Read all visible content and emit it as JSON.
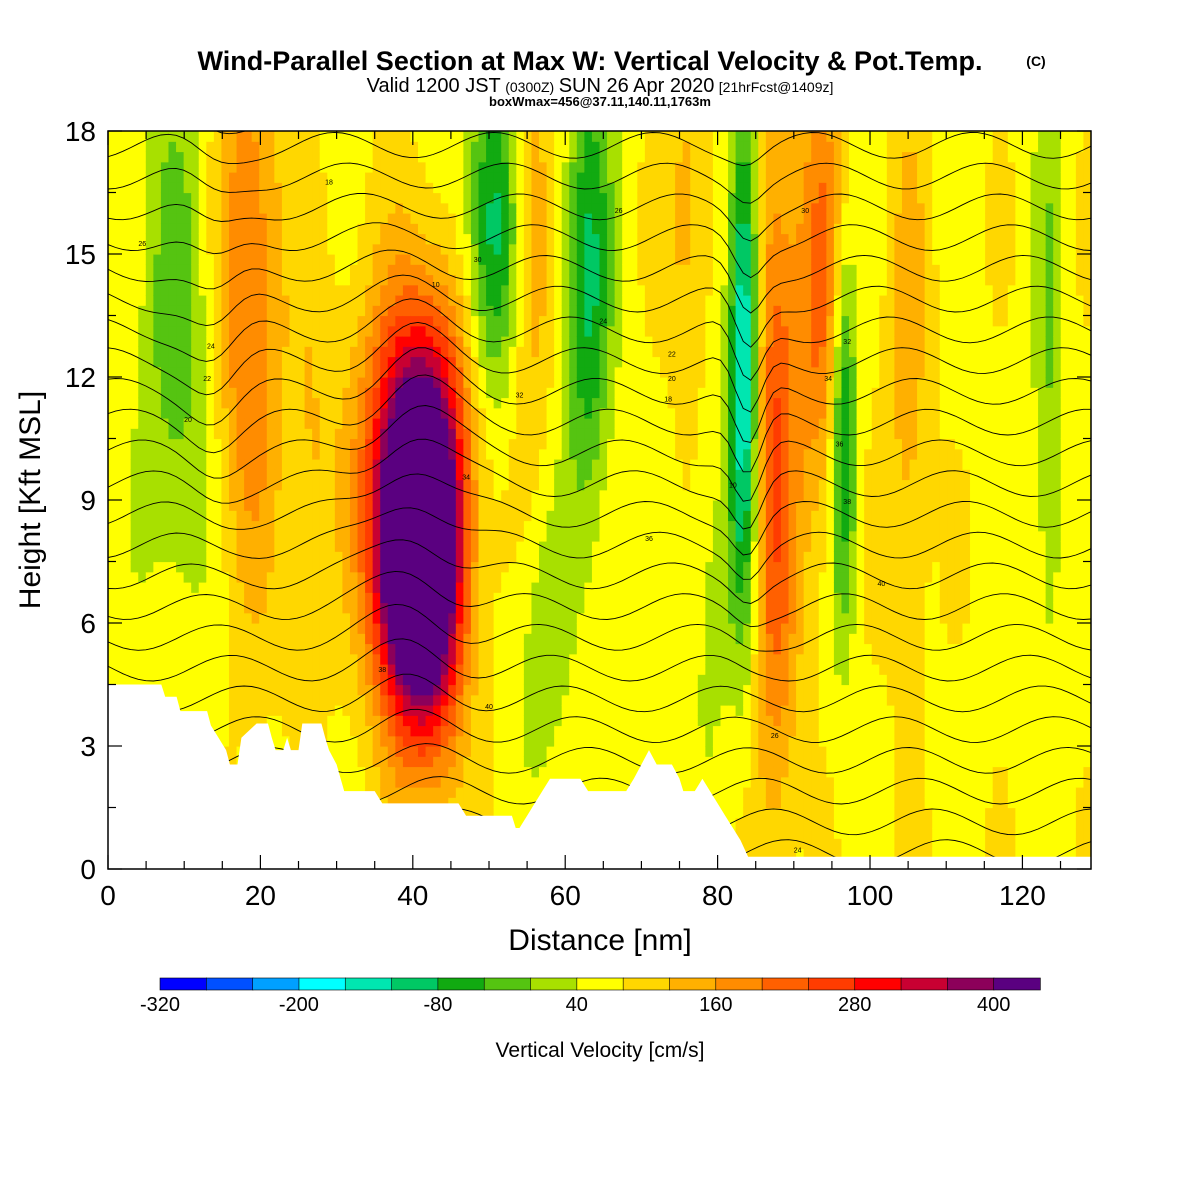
{
  "title": {
    "main": "Wind-Parallel Section at Max W: Vertical Velocity & Pot.Temp.",
    "copyright": "(C)",
    "valid_prefix": "Valid 1200 JST",
    "valid_utc": "(0300Z)",
    "valid_date": "SUN 26 Apr 2020",
    "forecast": "[21hrFcst@1409z]",
    "boxwmax": "boxWmax=456@37.11,140.11,1763m"
  },
  "chart_data": {
    "type": "heatmap",
    "xlabel": "Distance [nm]",
    "ylabel": "Height [Kft MSL]",
    "xlim": [
      0,
      129
    ],
    "ylim": [
      0,
      18
    ],
    "x_ticks": [
      0,
      20,
      40,
      60,
      80,
      100,
      120
    ],
    "x_minor_step": 5,
    "y_ticks": [
      0,
      3,
      6,
      9,
      12,
      15,
      18
    ],
    "y_minor_step": 1.5,
    "colorbar": {
      "label": "Vertical Velocity [cm/s]",
      "ticks": [
        -320,
        -200,
        -80,
        40,
        160,
        280,
        400
      ],
      "levels": [
        -360,
        -320,
        -280,
        -240,
        -200,
        -160,
        -120,
        -80,
        -40,
        0,
        40,
        80,
        120,
        160,
        200,
        240,
        280,
        320,
        360,
        400,
        440
      ],
      "colors": [
        "#0000ff",
        "#0050ff",
        "#00a0ff",
        "#00ffff",
        "#00e6b0",
        "#00c864",
        "#11aa11",
        "#55c411",
        "#a8e000",
        "#ffff00",
        "#ffd700",
        "#ffb000",
        "#ff8c00",
        "#ff6000",
        "#ff3c00",
        "#ff0000",
        "#c80032",
        "#8c005a",
        "#5a0080",
        "#5a0080"
      ]
    },
    "updrafts": [
      {
        "x": 39.0,
        "z": 7.8,
        "w": 460,
        "sx": 3.2,
        "sz": 2.8
      },
      {
        "x": 43.0,
        "z": 7.5,
        "w": 320,
        "sx": 3.0,
        "sz": 3.2
      },
      {
        "x": 40.5,
        "z": 11.0,
        "w": 130,
        "sx": 6.0,
        "sz": 3.0
      },
      {
        "x": 18.5,
        "z": 14.0,
        "w": 140,
        "sx": 3.0,
        "sz": 5.0
      },
      {
        "x": 87.5,
        "z": 10.0,
        "w": 170,
        "sx": 2.2,
        "sz": 6.0
      },
      {
        "x": 94.0,
        "z": 14.0,
        "w": 150,
        "sx": 2.5,
        "sz": 4.0
      },
      {
        "x": 55.5,
        "z": 15.5,
        "w": 90,
        "sx": 2.0,
        "sz": 3.5
      },
      {
        "x": 76.0,
        "z": 16.0,
        "w": 70,
        "sx": 2.0,
        "sz": 3.0
      },
      {
        "x": 26.5,
        "z": 9.0,
        "w": 50,
        "sx": 2.0,
        "sz": 4.0
      },
      {
        "x": 105.0,
        "z": 12.0,
        "w": 70,
        "sx": 2.0,
        "sz": 5.0
      }
    ],
    "downdrafts": [
      {
        "x": 9.0,
        "z": 13.0,
        "w": -90,
        "sx": 3.5,
        "sz": 5.0
      },
      {
        "x": 50.5,
        "z": 15.5,
        "w": -180,
        "sx": 2.5,
        "sz": 3.0
      },
      {
        "x": 63.0,
        "z": 14.5,
        "w": -160,
        "sx": 2.2,
        "sz": 4.0
      },
      {
        "x": 83.5,
        "z": 12.5,
        "w": -260,
        "sx": 1.4,
        "sz": 4.5
      },
      {
        "x": 96.5,
        "z": 11.0,
        "w": -200,
        "sx": 1.3,
        "sz": 3.5
      },
      {
        "x": 57.0,
        "z": 5.5,
        "w": -60,
        "sx": 2.5,
        "sz": 2.5
      },
      {
        "x": 123.5,
        "z": 12.0,
        "w": -70,
        "sx": 1.5,
        "sz": 6.0
      },
      {
        "x": 79.0,
        "z": 6.0,
        "w": -45,
        "sx": 2.0,
        "sz": 3.0
      }
    ],
    "terrain": [
      [
        0,
        4.5
      ],
      [
        7,
        4.5
      ],
      [
        7.5,
        4.2
      ],
      [
        9,
        4.2
      ],
      [
        9.5,
        3.85
      ],
      [
        13,
        3.85
      ],
      [
        13.5,
        3.5
      ],
      [
        14.5,
        3.2
      ],
      [
        15.5,
        2.9
      ],
      [
        16,
        2.55
      ],
      [
        17,
        2.55
      ],
      [
        17.5,
        3.2
      ],
      [
        19.5,
        3.55
      ],
      [
        21,
        3.55
      ],
      [
        21.5,
        3.2
      ],
      [
        22,
        2.9
      ],
      [
        23,
        2.9
      ],
      [
        23.5,
        3.2
      ],
      [
        24,
        2.9
      ],
      [
        25,
        2.9
      ],
      [
        25.5,
        3.55
      ],
      [
        28,
        3.55
      ],
      [
        28.5,
        3.2
      ],
      [
        29,
        2.9
      ],
      [
        30,
        2.55
      ],
      [
        31,
        1.9
      ],
      [
        35,
        1.9
      ],
      [
        36,
        1.6
      ],
      [
        40,
        1.6
      ],
      [
        46,
        1.6
      ],
      [
        47,
        1.3
      ],
      [
        49,
        1.3
      ],
      [
        53,
        1.3
      ],
      [
        53.5,
        1.0
      ],
      [
        54,
        1.0
      ],
      [
        55,
        1.3
      ],
      [
        56,
        1.6
      ],
      [
        57,
        1.9
      ],
      [
        58,
        2.2
      ],
      [
        62,
        2.2
      ],
      [
        63,
        1.9
      ],
      [
        68,
        1.9
      ],
      [
        69,
        2.2
      ],
      [
        70,
        2.55
      ],
      [
        71,
        2.9
      ],
      [
        72,
        2.55
      ],
      [
        74,
        2.55
      ],
      [
        75,
        2.2
      ],
      [
        75.5,
        1.9
      ],
      [
        77,
        1.9
      ],
      [
        78,
        2.2
      ],
      [
        79,
        1.9
      ],
      [
        80,
        1.6
      ],
      [
        81,
        1.3
      ],
      [
        82,
        1.0
      ],
      [
        83,
        0.7
      ],
      [
        84,
        0.3
      ],
      [
        90,
        0.3
      ],
      [
        100,
        0.3
      ],
      [
        129,
        0.3
      ]
    ],
    "theta_contour_labels": [
      "26",
      "24",
      "22",
      "20",
      "18",
      "10",
      "30",
      "32",
      "34",
      "36",
      "38",
      "40"
    ]
  }
}
